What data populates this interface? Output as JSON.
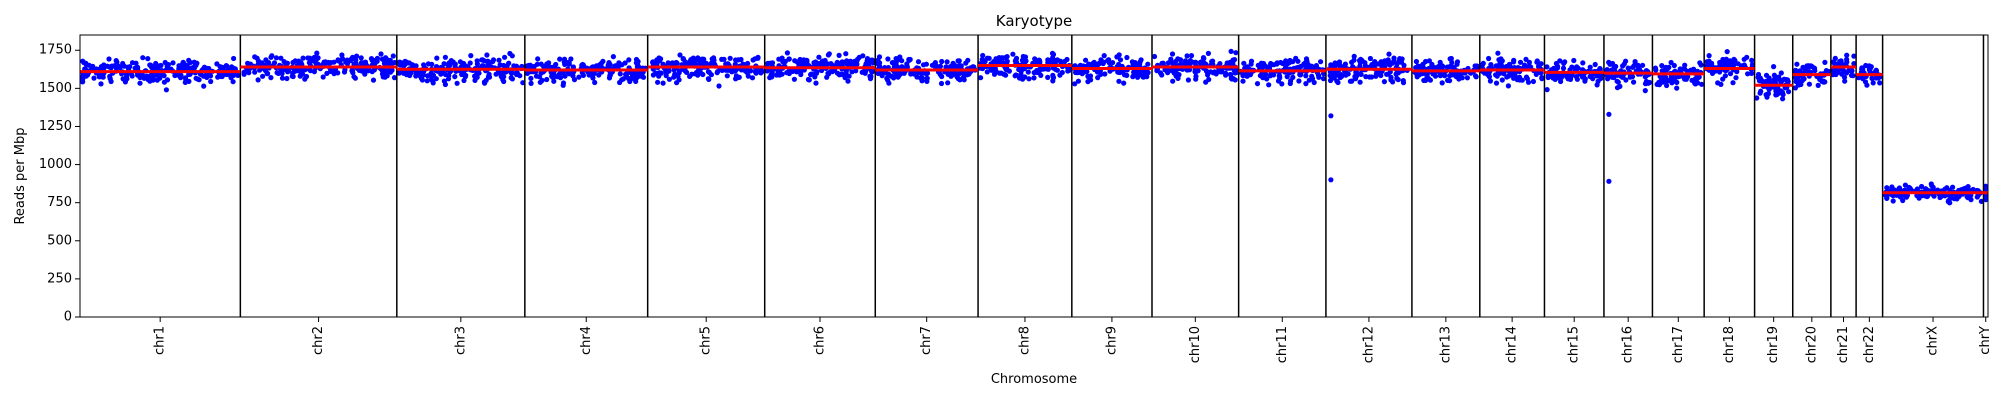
{
  "chart_data": {
    "type": "scatter",
    "title": "Karyotype",
    "xlabel": "Chromosome",
    "ylabel": "Reads per Mbp",
    "ylim": [
      0,
      1850
    ],
    "yticks": [
      0,
      250,
      500,
      750,
      1000,
      1250,
      1500,
      1750
    ],
    "grid": false,
    "point_color": "#0000ff",
    "median_color": "#ff0000",
    "outliers": [
      {
        "chrom": "chr12",
        "y": 1320
      },
      {
        "chrom": "chr12",
        "y": 900
      },
      {
        "chrom": "chr16",
        "y": 1330
      },
      {
        "chrom": "chr16",
        "y": 890
      }
    ],
    "chromosomes": [
      {
        "name": "chr1",
        "size": 248,
        "median": 1610
      },
      {
        "name": "chr2",
        "size": 242,
        "median": 1640
      },
      {
        "name": "chr3",
        "size": 198,
        "median": 1625
      },
      {
        "name": "chr4",
        "size": 190,
        "median": 1620
      },
      {
        "name": "chr5",
        "size": 181,
        "median": 1640
      },
      {
        "name": "chr6",
        "size": 171,
        "median": 1635
      },
      {
        "name": "chr7",
        "size": 159,
        "median": 1620
      },
      {
        "name": "chr8",
        "size": 145,
        "median": 1650
      },
      {
        "name": "chr9",
        "size": 124,
        "median": 1630
      },
      {
        "name": "chr10",
        "size": 134,
        "median": 1640
      },
      {
        "name": "chr11",
        "size": 135,
        "median": 1615
      },
      {
        "name": "chr12",
        "size": 133,
        "median": 1625
      },
      {
        "name": "chr13",
        "size": 105,
        "median": 1615
      },
      {
        "name": "chr14",
        "size": 100,
        "median": 1620
      },
      {
        "name": "chr15",
        "size": 92,
        "median": 1605
      },
      {
        "name": "chr16",
        "size": 75,
        "median": 1600
      },
      {
        "name": "chr17",
        "size": 80,
        "median": 1595
      },
      {
        "name": "chr18",
        "size": 78,
        "median": 1630
      },
      {
        "name": "chr19",
        "size": 59,
        "median": 1520
      },
      {
        "name": "chr20",
        "size": 59,
        "median": 1590
      },
      {
        "name": "chr21",
        "size": 39,
        "median": 1640
      },
      {
        "name": "chr22",
        "size": 41,
        "median": 1590
      },
      {
        "name": "chrX",
        "size": 156,
        "median": 815
      },
      {
        "name": "chrY",
        "size": 7,
        "median": 815
      }
    ]
  }
}
